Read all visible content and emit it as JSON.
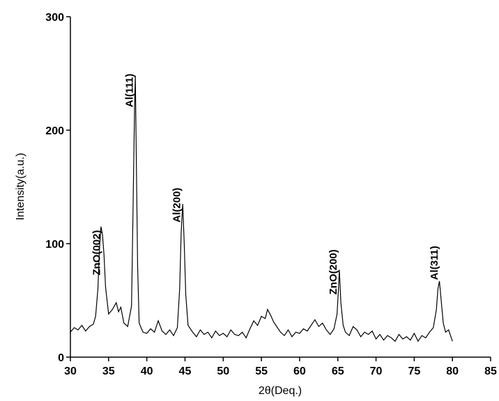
{
  "chart_data": {
    "type": "line",
    "x_label": "2θ(Deq.)",
    "y_label": "Intensity(a.u.)",
    "xlim": [
      30,
      85
    ],
    "xticks": [
      30,
      35,
      40,
      45,
      50,
      55,
      60,
      65,
      70,
      75,
      80,
      85
    ],
    "ylim": [
      0,
      300
    ],
    "yticks": [
      0,
      100,
      200,
      300
    ],
    "series": [
      {
        "color": "#000000",
        "x": [
          30,
          30.5,
          31,
          31.5,
          32,
          32.5,
          33,
          33.3,
          33.6,
          33.8,
          34.0,
          34.2,
          34.4,
          34.6,
          35,
          35.5,
          36,
          36.3,
          36.6,
          37,
          37.5,
          38,
          38.2,
          38.4,
          38.5,
          38.6,
          38.8,
          39,
          39.5,
          40,
          40.5,
          41,
          41.5,
          42,
          42.5,
          43,
          43.5,
          44,
          44.3,
          44.5,
          44.7,
          44.9,
          45.1,
          45.4,
          46,
          46.5,
          47,
          47.5,
          48,
          48.5,
          49,
          49.5,
          50,
          50.5,
          51,
          51.5,
          52,
          52.5,
          53,
          53.5,
          54,
          54.5,
          55,
          55.5,
          55.8,
          56.2,
          56.6,
          57,
          57.5,
          58,
          58.5,
          59,
          59.5,
          60,
          60.5,
          61,
          61.5,
          62,
          62.5,
          63,
          63.5,
          64,
          64.5,
          64.9,
          65.1,
          65.2,
          65.4,
          65.7,
          66,
          66.5,
          67,
          67.5,
          68,
          68.5,
          69,
          69.5,
          70,
          70.5,
          71,
          71.5,
          72,
          72.5,
          73,
          73.5,
          74,
          74.5,
          75,
          75.5,
          76,
          76.5,
          77,
          77.5,
          77.9,
          78.1,
          78.3,
          78.5,
          78.8,
          79.1,
          79.5,
          80
        ],
        "values": [
          22,
          26,
          24,
          28,
          23,
          27,
          29,
          36,
          60,
          95,
          115,
          108,
          90,
          62,
          38,
          42,
          48,
          40,
          44,
          30,
          27,
          45,
          130,
          220,
          248,
          190,
          80,
          30,
          22,
          21,
          25,
          22,
          32,
          23,
          20,
          24,
          19,
          26,
          60,
          110,
          135,
          100,
          55,
          28,
          22,
          18,
          24,
          20,
          22,
          17,
          23,
          19,
          21,
          18,
          24,
          20,
          19,
          22,
          17,
          25,
          32,
          28,
          36,
          34,
          42,
          37,
          31,
          27,
          22,
          19,
          24,
          18,
          22,
          21,
          25,
          23,
          28,
          33,
          27,
          30,
          24,
          20,
          25,
          38,
          62,
          77,
          48,
          28,
          22,
          19,
          27,
          24,
          18,
          22,
          20,
          23,
          16,
          20,
          15,
          19,
          17,
          14,
          20,
          16,
          18,
          15,
          21,
          14,
          19,
          17,
          22,
          26,
          42,
          60,
          67,
          52,
          30,
          22,
          24,
          14
        ]
      }
    ],
    "annotations": [
      {
        "text": "ZnO(002)",
        "x": 33.5,
        "y": 92
      },
      {
        "text": "Al(111)",
        "x": 37.8,
        "y": 235
      },
      {
        "text": "Al(200)",
        "x": 44.0,
        "y": 134
      },
      {
        "text": "ZnO(200)",
        "x": 64.5,
        "y": 75
      },
      {
        "text": "Al(311)",
        "x": 77.7,
        "y": 83
      }
    ]
  }
}
